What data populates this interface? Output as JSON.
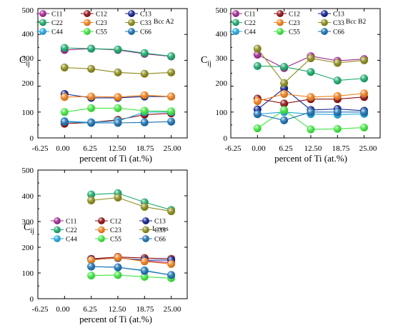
{
  "chart_data": [
    {
      "type": "line",
      "xlabel": "percent of Ti (at.%)",
      "ylabel_main": "C",
      "ylabel_sub": "ij",
      "xticks": [
        "-6.25",
        "0.00",
        "6.25",
        "12.50",
        "18.75",
        "25.00"
      ],
      "yticks": [
        "0",
        "100",
        "200",
        "300",
        "400",
        "500"
      ],
      "xlim": [
        -6.25,
        28.75
      ],
      "ylim": [
        0,
        500
      ],
      "legend_extra": "Bcc A2",
      "legend_placement": "top-left",
      "x": [
        0.0,
        6.25,
        12.5,
        18.75,
        25.0
      ],
      "series": [
        {
          "name": "C11",
          "color": "#a0278f",
          "values": [
            340,
            345,
            340,
            325,
            315
          ]
        },
        {
          "name": "C12",
          "color": "#8b0f12",
          "values": [
            55,
            60,
            70,
            90,
            95
          ]
        },
        {
          "name": "C13",
          "color": "#0d1f8a",
          "values": [
            170,
            155,
            155,
            160,
            160
          ]
        },
        {
          "name": "C22",
          "color": "#1aa86a",
          "values": [
            348,
            345,
            342,
            328,
            316
          ]
        },
        {
          "name": "C23",
          "color": "#f07f1a",
          "values": [
            158,
            160,
            158,
            165,
            160
          ]
        },
        {
          "name": "C33",
          "color": "#8a8a1a",
          "values": [
            272,
            267,
            253,
            248,
            253
          ]
        },
        {
          "name": "C44",
          "color": "#22a8df",
          "values": [
            65,
            60,
            65,
            100,
            100
          ]
        },
        {
          "name": "C55",
          "color": "#3fe63f",
          "values": [
            100,
            115,
            115,
            105,
            103
          ]
        },
        {
          "name": "C66",
          "color": "#1a6fb0",
          "values": [
            62,
            58,
            58,
            60,
            63
          ]
        }
      ]
    },
    {
      "type": "line",
      "xlabel": "percent of Ti (at.%)",
      "ylabel_main": "C",
      "ylabel_sub": "ij",
      "xticks": [
        "-6.25",
        "0.00",
        "6.25",
        "12.50",
        "18.75",
        "25.00"
      ],
      "yticks": [
        "0",
        "100",
        "200",
        "300",
        "400",
        "500"
      ],
      "xlim": [
        -6.25,
        28.75
      ],
      "ylim": [
        0,
        500
      ],
      "legend_extra": "Bcc B2",
      "legend_placement": "top-left",
      "x": [
        0.0,
        6.25,
        12.5,
        18.75,
        25.0
      ],
      "series": [
        {
          "name": "C11",
          "color": "#a0278f",
          "values": [
            322,
            270,
            316,
            298,
            305
          ]
        },
        {
          "name": "C12",
          "color": "#8b0f12",
          "values": [
            152,
            133,
            150,
            150,
            158
          ]
        },
        {
          "name": "C13",
          "color": "#0d1f8a",
          "values": [
            110,
            192,
            108,
            112,
            105
          ]
        },
        {
          "name": "C22",
          "color": "#1aa86a",
          "values": [
            278,
            275,
            255,
            222,
            230
          ]
        },
        {
          "name": "C23",
          "color": "#f07f1a",
          "values": [
            142,
            170,
            158,
            162,
            172
          ]
        },
        {
          "name": "C33",
          "color": "#8a8a1a",
          "values": [
            345,
            212,
            308,
            290,
            300
          ]
        },
        {
          "name": "C44",
          "color": "#22a8df",
          "values": [
            92,
            100,
            92,
            90,
            93
          ]
        },
        {
          "name": "C55",
          "color": "#3fe63f",
          "values": [
            37,
            108,
            33,
            35,
            40
          ]
        },
        {
          "name": "C66",
          "color": "#1a6fb0",
          "values": [
            92,
            68,
            100,
            100,
            100
          ]
        }
      ]
    },
    {
      "type": "line",
      "xlabel": "percent of Ti (at.%)",
      "ylabel_main": "C",
      "ylabel_sub": "ij",
      "xticks": [
        "-6.25",
        "0.00",
        "6.25",
        "12.50",
        "18.75",
        "25.00"
      ],
      "yticks": [
        "0",
        "100",
        "200",
        "300",
        "400",
        "500"
      ],
      "xlim": [
        -6.25,
        28.75
      ],
      "ylim": [
        0,
        500
      ],
      "legend_extra": "Laves",
      "legend_placement": "center-left",
      "x": [
        6.25,
        12.5,
        18.75,
        25.0
      ],
      "series": [
        {
          "name": "C11",
          "color": "#a0278f",
          "values": [
            152,
            160,
            147,
            140
          ]
        },
        {
          "name": "C12",
          "color": "#8b0f12",
          "values": [
            155,
            162,
            158,
            155
          ]
        },
        {
          "name": "C13",
          "color": "#0d1f8a",
          "values": [
            152,
            158,
            150,
            150
          ]
        },
        {
          "name": "C22",
          "color": "#1aa86a",
          "values": [
            405,
            410,
            375,
            345
          ]
        },
        {
          "name": "C23",
          "color": "#f07f1a",
          "values": [
            150,
            160,
            145,
            135
          ]
        },
        {
          "name": "C33",
          "color": "#8a8a1a",
          "values": [
            382,
            393,
            357,
            340
          ]
        },
        {
          "name": "C44",
          "color": "#22a8df",
          "values": [
            125,
            122,
            110,
            92
          ]
        },
        {
          "name": "C55",
          "color": "#3fe63f",
          "values": [
            90,
            92,
            85,
            80
          ]
        },
        {
          "name": "C66",
          "color": "#1a6fb0",
          "values": [
            125,
            122,
            108,
            92
          ]
        }
      ]
    }
  ]
}
